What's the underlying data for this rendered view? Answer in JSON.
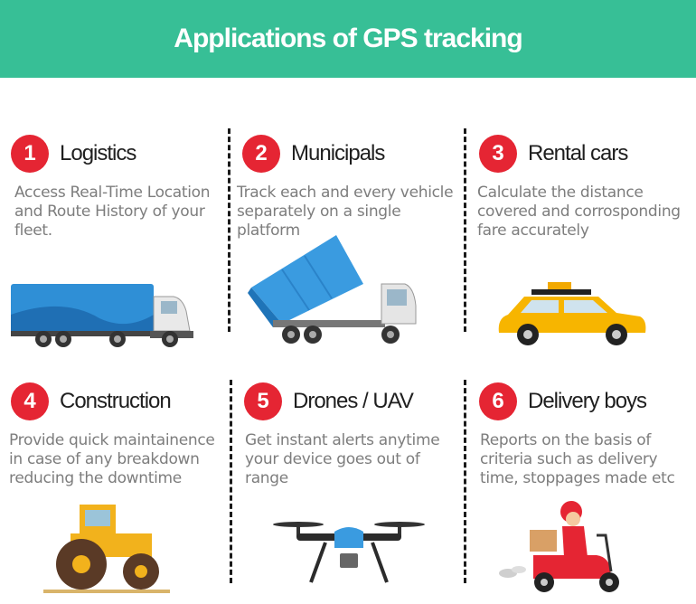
{
  "header": {
    "title": "Applications of GPS tracking"
  },
  "colors": {
    "header_bg": "#37bf96",
    "badge": "#e52533",
    "title_text": "#1f1f1f",
    "desc_text": "#7d7d7d"
  },
  "cards": [
    {
      "number": "1",
      "title": "Logistics",
      "description": "Access Real-Time Location and Route History of your fleet.",
      "icon": "truck-icon"
    },
    {
      "number": "2",
      "title": "Municipals",
      "description": "Track each and every vehicle separately on a single platform",
      "icon": "dump-truck-icon"
    },
    {
      "number": "3",
      "title": "Rental cars",
      "description": "Calculate the distance covered and corrosponding fare accurately",
      "icon": "taxi-icon"
    },
    {
      "number": "4",
      "title": "Construction",
      "description": "Provide quick maintainence in case of any breakdown reducing the downtime",
      "icon": "bulldozer-icon"
    },
    {
      "number": "5",
      "title": "Drones / UAV",
      "description": "Get instant alerts anytime your device goes out of range",
      "icon": "drone-icon"
    },
    {
      "number": "6",
      "title": "Delivery boys",
      "description": "Reports on the basis of criteria such as delivery time, stoppages made etc",
      "icon": "delivery-scooter-icon"
    }
  ]
}
